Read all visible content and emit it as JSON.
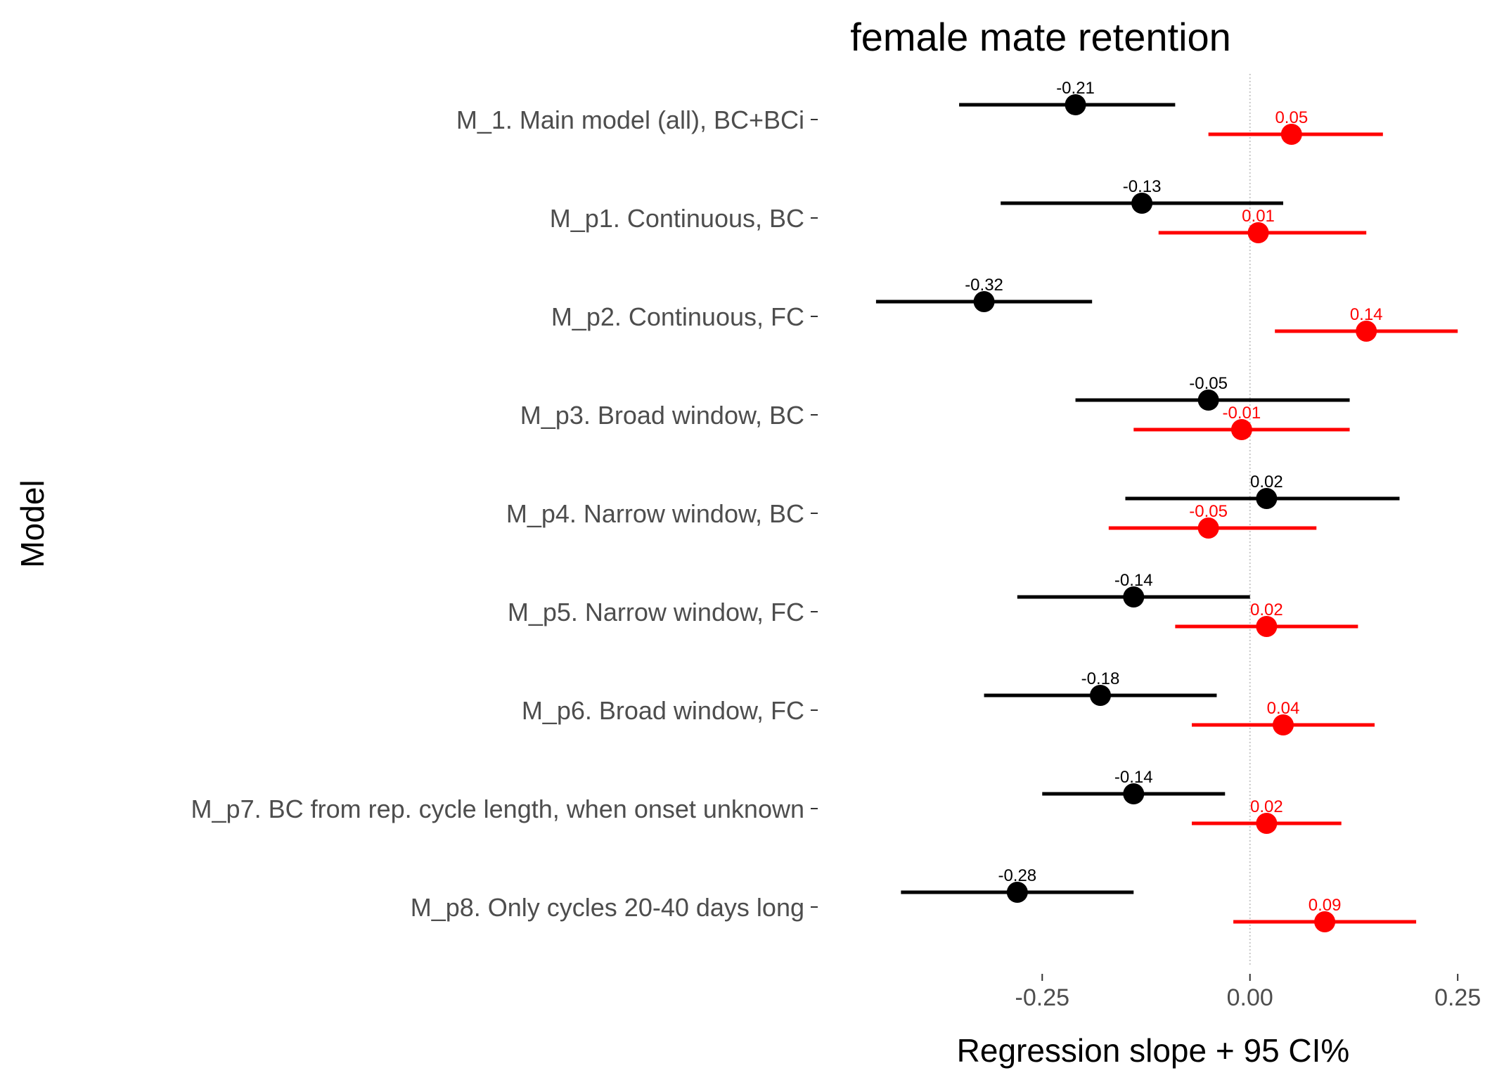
{
  "chart_data": {
    "type": "forest",
    "title": "female mate retention",
    "xlabel": "Regression slope + 95 CI%",
    "ylabel": "Model",
    "xlim": [
      -0.51,
      0.26
    ],
    "xticks": [
      -0.25,
      0.0,
      0.25
    ],
    "xtick_labels": [
      "-0.25",
      "0.00",
      "0.25"
    ],
    "reference_line": 0,
    "grid": false,
    "categories": [
      "M_1. Main model (all), BC+BCi",
      "M_p1. Continuous, BC",
      "M_p2. Continuous, FC",
      "M_p3. Broad window, BC",
      "M_p4. Narrow window, BC",
      "M_p5. Narrow window, FC",
      "M_p6. Broad window, FC",
      "M_p7. BC from rep. cycle length, when onset unknown",
      "M_p8. Only cycles 20-40 days long"
    ],
    "series": [
      {
        "color": "#000000",
        "estimates": [
          -0.21,
          -0.13,
          -0.32,
          -0.05,
          0.02,
          -0.14,
          -0.18,
          -0.14,
          -0.28
        ],
        "labels": [
          "-0.21",
          "-0.13",
          "-0.32",
          "-0.05",
          "0.02",
          "-0.14",
          "-0.18",
          "-0.14",
          "-0.28"
        ],
        "lower": [
          -0.35,
          -0.3,
          -0.45,
          -0.21,
          -0.15,
          -0.28,
          -0.32,
          -0.25,
          -0.42
        ],
        "upper": [
          -0.09,
          0.04,
          -0.19,
          0.12,
          0.18,
          0.0,
          -0.04,
          -0.03,
          -0.14
        ]
      },
      {
        "color": "#ff0000",
        "estimates": [
          0.05,
          0.01,
          0.14,
          -0.01,
          -0.05,
          0.02,
          0.04,
          0.02,
          0.09
        ],
        "labels": [
          "0.05",
          "0.01",
          "0.14",
          "-0.01",
          "-0.05",
          "0.02",
          "0.04",
          "0.02",
          "0.09"
        ],
        "lower": [
          -0.05,
          -0.11,
          0.03,
          -0.14,
          -0.17,
          -0.09,
          -0.07,
          -0.07,
          -0.02
        ],
        "upper": [
          0.16,
          0.14,
          0.25,
          0.12,
          0.08,
          0.13,
          0.15,
          0.11,
          0.2
        ]
      }
    ]
  }
}
